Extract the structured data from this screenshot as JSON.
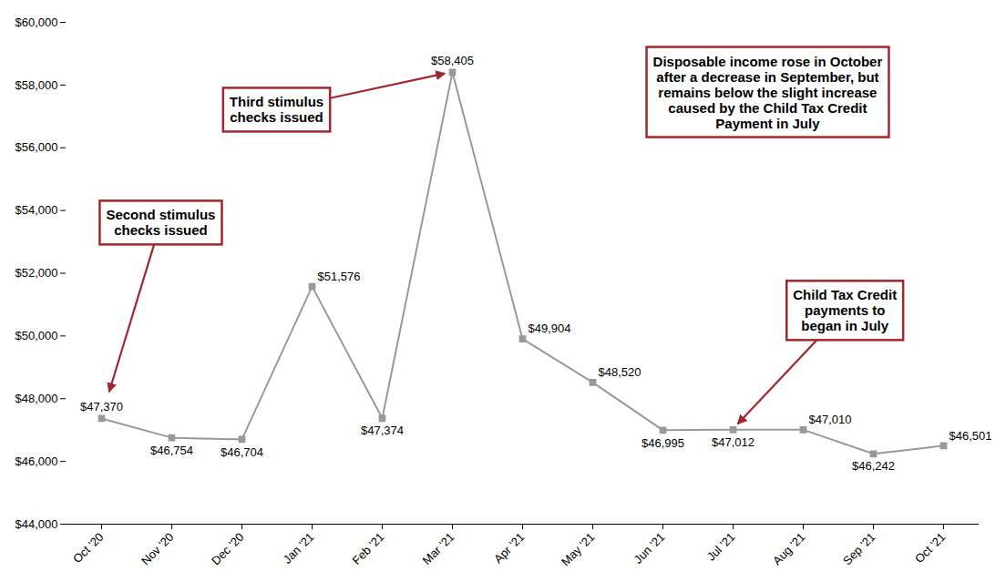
{
  "chart_data": {
    "type": "line",
    "categories": [
      "Oct '20",
      "Nov '20",
      "Dec '20",
      "Jan '21",
      "Feb '21",
      "Mar '21",
      "Apr '21",
      "May '21",
      "Jun '21",
      "Jul '21",
      "Aug '21",
      "Sep '21",
      "Oct '21"
    ],
    "values": [
      47370,
      46754,
      46704,
      51576,
      47374,
      58405,
      49904,
      48520,
      46995,
      47012,
      47010,
      46242,
      46501
    ],
    "value_labels": [
      "$47,370",
      "$46,754",
      "$46,704",
      "$51,576",
      "$47,374",
      "$58,405",
      "$49,904",
      "$48,520",
      "$46,995",
      "$47,012",
      "$47,010",
      "$46,242",
      "$46,501"
    ],
    "data_labels": true,
    "color": "#999999",
    "marker": "square",
    "ylim": [
      44000,
      60000
    ],
    "yticks": [
      {
        "value": 44000,
        "label": "$44,000"
      },
      {
        "value": 46000,
        "label": "$46,000"
      },
      {
        "value": 48000,
        "label": "$48,000"
      },
      {
        "value": 50000,
        "label": "$50,000"
      },
      {
        "value": 52000,
        "label": "$52,000"
      },
      {
        "value": 54000,
        "label": "$54,000"
      },
      {
        "value": 56000,
        "label": "$56,000"
      },
      {
        "value": 58000,
        "label": "$58,000"
      },
      {
        "value": 60000,
        "label": "$60,000"
      }
    ],
    "grid": false,
    "annotations": [
      {
        "text": "Second stimulus\nchecks issued",
        "points_to": "Oct '20",
        "color": "#A0272D"
      },
      {
        "text": "Third stimulus\nchecks issued",
        "points_to": "Mar '21",
        "color": "#A0272D"
      },
      {
        "text": "Disposable income rose in October\nafter a decrease in September, but\nremains below the slight increase\ncaused by the Child Tax Credit\nPayment in July",
        "color": "#A0272D"
      },
      {
        "text": "Child Tax Credit\npayments to\nbegan in July",
        "points_to": "Jul '21",
        "color": "#A0272D"
      }
    ]
  }
}
